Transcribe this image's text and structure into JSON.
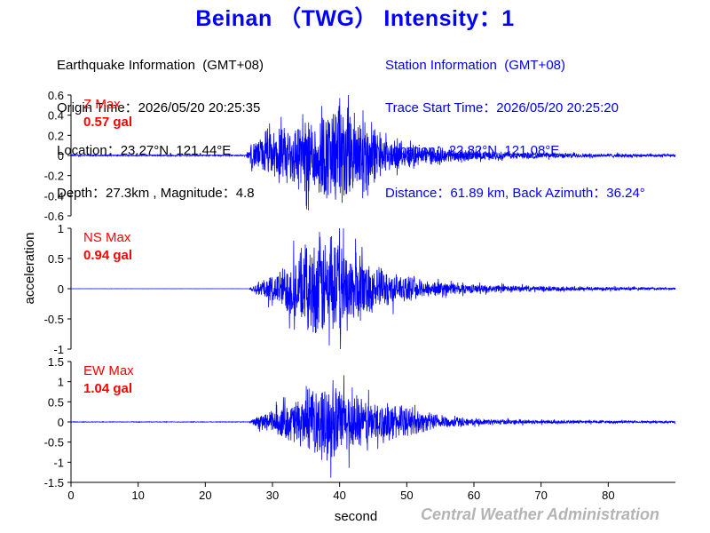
{
  "title": "Beinan （TWG） Intensity：1",
  "earthquake_info": {
    "heading": "Earthquake Information  (GMT+08)",
    "origin_time": "Origin Time：2026/05/20 20:25:35",
    "location": "Location：23.27°N, 121.44°E",
    "depth_magnitude": "Depth：27.3km , Magnitude：4.8"
  },
  "station_info": {
    "heading": "Station Information  (GMT+08)",
    "trace_start": "Trace Start Time：2026/05/20 20:25:20",
    "location": "Location：22.82°N, 121.08°E",
    "distance": "Distance：61.89 km, Back Azimuth：36.24°"
  },
  "agency": "Central Weather Administration",
  "colors": {
    "trace": "#0000ff",
    "max_label": "#ff0000",
    "title": "#0000ff",
    "agency": "#b4b4b4"
  },
  "chart_data": {
    "type": "line",
    "xlabel": "second",
    "ylabel": "acceleration",
    "xlim": [
      0,
      90
    ],
    "xticks": [
      0,
      10,
      20,
      30,
      40,
      50,
      60,
      70,
      80
    ],
    "grid": false,
    "panels": [
      {
        "name": "Z",
        "max_label": "Z Max",
        "max_value": "0.57 gal",
        "peak": 0.57,
        "ylim": [
          -0.6,
          0.6
        ],
        "yticks": [
          "-0.6",
          "-0.4",
          "-0.2",
          "0",
          "0.2",
          "0.4",
          "0.6"
        ],
        "envelope": {
          "time": [
            0,
            26,
            27,
            30,
            35,
            40,
            44,
            47,
            52,
            60,
            70,
            80,
            89
          ],
          "amplitude": [
            0.006,
            0.006,
            0.14,
            0.24,
            0.38,
            0.55,
            0.4,
            0.16,
            0.1,
            0.05,
            0.03,
            0.02,
            0.015
          ]
        }
      },
      {
        "name": "NS",
        "max_label": "NS Max",
        "max_value": "0.94 gal",
        "peak": 0.94,
        "ylim": [
          -1,
          1
        ],
        "yticks": [
          "-1",
          "-0.5",
          "0",
          "0.5",
          "1"
        ],
        "envelope": {
          "time": [
            0,
            26.5,
            27.5,
            30,
            33,
            37,
            40,
            44,
            48,
            52,
            60,
            70,
            80,
            89
          ],
          "amplitude": [
            0.001,
            0.001,
            0.1,
            0.22,
            0.5,
            0.85,
            0.75,
            0.45,
            0.25,
            0.15,
            0.07,
            0.04,
            0.03,
            0.02
          ]
        }
      },
      {
        "name": "EW",
        "max_label": "EW Max",
        "max_value": "1.04 gal",
        "peak": 1.04,
        "ylim": [
          -1.5,
          1.5
        ],
        "yticks": [
          "-1.5",
          "-1",
          "-0.5",
          "0",
          "0.5",
          "1",
          "1.5"
        ],
        "envelope": {
          "time": [
            0,
            26.5,
            27.5,
            30,
            35,
            39,
            43,
            47,
            50,
            55,
            60,
            70,
            80,
            89
          ],
          "amplitude": [
            0.005,
            0.005,
            0.1,
            0.25,
            0.55,
            0.8,
            0.5,
            0.4,
            0.3,
            0.15,
            0.06,
            0.04,
            0.03,
            0.02
          ]
        }
      }
    ]
  }
}
